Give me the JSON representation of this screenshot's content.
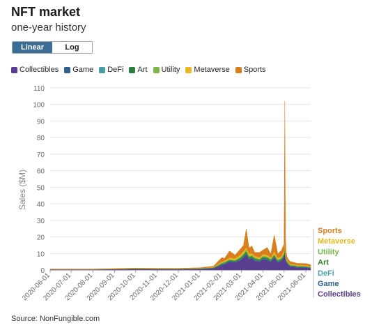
{
  "header": {
    "title": "NFT market",
    "subtitle": "one-year history"
  },
  "scale_toggle": {
    "linear_label": "Linear",
    "log_label": "Log",
    "selected": "Linear"
  },
  "legend": [
    {
      "label": "Collectibles",
      "color": "#5b3d8f"
    },
    {
      "label": "Game",
      "color": "#2f5f8a"
    },
    {
      "label": "DeFi",
      "color": "#4a9ca8"
    },
    {
      "label": "Art",
      "color": "#2e7d3a"
    },
    {
      "label": "Utility",
      "color": "#7ab648"
    },
    {
      "label": "Metaverse",
      "color": "#e6b821"
    },
    {
      "label": "Sports",
      "color": "#d97e1f"
    }
  ],
  "source": "Source: NonFungible.com",
  "chart_data": {
    "type": "area",
    "stacked": true,
    "ylabel": "Sales ($M)",
    "xlabel": "",
    "ylim": [
      0,
      110
    ],
    "yticks": [
      0,
      10,
      20,
      30,
      40,
      50,
      60,
      70,
      80,
      90,
      100,
      110
    ],
    "xlim": [
      "2020-06-01",
      "2021-06-08"
    ],
    "xticks": [
      "2020-06-01",
      "2020-07-01",
      "2020-08-01",
      "2020-09-01",
      "2020-10-01",
      "2020-11-01",
      "2020-12-01",
      "2021-01-01",
      "2021-02-01",
      "2021-03-01",
      "2021-04-01",
      "2021-05-01",
      "2021-06-01"
    ],
    "grid": "horizontal",
    "end_labels": [
      "Sports",
      "Metaverse",
      "Utility",
      "Art",
      "DeFi",
      "Game",
      "Collectibles"
    ],
    "dates": [
      "2020-06-01",
      "2020-07-01",
      "2020-08-01",
      "2020-09-01",
      "2020-10-01",
      "2020-11-01",
      "2020-12-01",
      "2021-01-01",
      "2021-01-20",
      "2021-02-01",
      "2021-02-05",
      "2021-02-12",
      "2021-02-20",
      "2021-02-28",
      "2021-03-04",
      "2021-03-08",
      "2021-03-12",
      "2021-03-16",
      "2021-03-20",
      "2021-03-27",
      "2021-04-01",
      "2021-04-07",
      "2021-04-12",
      "2021-04-17",
      "2021-04-22",
      "2021-04-27",
      "2021-05-01",
      "2021-05-02",
      "2021-05-03",
      "2021-05-04",
      "2021-05-05",
      "2021-05-07",
      "2021-05-10",
      "2021-05-15",
      "2021-05-20",
      "2021-05-25",
      "2021-06-01",
      "2021-06-08"
    ],
    "series": [
      {
        "name": "Collectibles",
        "color": "#5b3d8f",
        "values": [
          0.3,
          0.3,
          0.3,
          0.4,
          0.5,
          0.4,
          0.4,
          0.6,
          1.0,
          3.0,
          3.5,
          5.0,
          4.5,
          6.0,
          7.5,
          9.5,
          6.5,
          7.0,
          5.5,
          5.0,
          6.5,
          6.0,
          5.0,
          7.5,
          4.5,
          5.5,
          8.0,
          12.0,
          7.0,
          5.0,
          4.0,
          3.0,
          2.0,
          2.0,
          1.5,
          1.5,
          1.5,
          1.0
        ]
      },
      {
        "name": "Game",
        "color": "#2f5f8a",
        "values": [
          0.1,
          0.1,
          0.1,
          0.1,
          0.1,
          0.1,
          0.1,
          0.1,
          0.1,
          0.2,
          0.2,
          0.2,
          0.2,
          0.3,
          0.3,
          0.3,
          0.3,
          0.3,
          0.3,
          0.3,
          0.3,
          0.3,
          0.3,
          0.3,
          0.3,
          0.3,
          0.3,
          0.3,
          0.3,
          0.3,
          0.3,
          0.3,
          0.2,
          0.2,
          0.2,
          0.2,
          0.2,
          0.2
        ]
      },
      {
        "name": "DeFi",
        "color": "#4a9ca8",
        "values": [
          0.0,
          0.0,
          0.0,
          0.1,
          0.1,
          0.1,
          0.1,
          0.1,
          0.1,
          0.2,
          0.2,
          0.2,
          0.2,
          0.3,
          0.3,
          0.3,
          0.3,
          0.3,
          0.3,
          0.3,
          0.3,
          0.3,
          0.3,
          0.3,
          0.3,
          0.3,
          0.3,
          0.4,
          0.3,
          0.3,
          0.3,
          0.3,
          0.2,
          0.2,
          0.2,
          0.2,
          0.2,
          0.2
        ]
      },
      {
        "name": "Art",
        "color": "#2e7d3a",
        "values": [
          0.0,
          0.0,
          0.0,
          0.0,
          0.1,
          0.1,
          0.1,
          0.1,
          0.2,
          0.5,
          0.5,
          0.6,
          0.6,
          0.8,
          1.0,
          1.2,
          0.8,
          0.8,
          0.8,
          0.6,
          0.8,
          0.8,
          0.6,
          0.8,
          0.6,
          0.6,
          0.8,
          1.2,
          0.8,
          0.6,
          0.5,
          0.4,
          0.3,
          0.3,
          0.3,
          0.3,
          0.2,
          0.2
        ]
      },
      {
        "name": "Utility",
        "color": "#7ab648",
        "values": [
          0.0,
          0.0,
          0.0,
          0.0,
          0.1,
          0.0,
          0.0,
          0.1,
          0.2,
          0.5,
          0.5,
          0.5,
          0.5,
          0.8,
          0.8,
          1.0,
          0.7,
          0.7,
          0.7,
          0.6,
          0.7,
          0.7,
          0.6,
          0.8,
          0.6,
          0.6,
          0.8,
          1.2,
          0.8,
          0.6,
          0.5,
          0.4,
          0.3,
          0.3,
          0.3,
          0.3,
          0.3,
          0.2
        ]
      },
      {
        "name": "Metaverse",
        "color": "#e6b821",
        "values": [
          0.1,
          0.1,
          0.1,
          0.1,
          0.1,
          0.1,
          0.1,
          0.1,
          0.2,
          0.6,
          0.6,
          1.0,
          1.0,
          1.2,
          1.5,
          1.5,
          1.2,
          1.0,
          1.0,
          0.8,
          1.0,
          1.0,
          0.8,
          1.5,
          1.0,
          1.0,
          1.5,
          3.0,
          2.0,
          1.0,
          0.8,
          0.6,
          0.6,
          0.6,
          0.5,
          0.5,
          0.5,
          0.4
        ]
      },
      {
        "name": "Sports",
        "color": "#d97e1f",
        "values": [
          0.1,
          0.1,
          0.1,
          0.2,
          0.2,
          0.2,
          0.2,
          0.3,
          0.5,
          2.5,
          1.5,
          4.0,
          2.0,
          3.5,
          3.5,
          11.0,
          3.5,
          4.5,
          2.0,
          3.0,
          2.5,
          4.5,
          2.0,
          10.0,
          2.5,
          3.5,
          4.0,
          84.0,
          8.0,
          3.0,
          2.0,
          1.5,
          1.5,
          1.0,
          1.0,
          1.0,
          1.0,
          1.0
        ]
      }
    ]
  }
}
